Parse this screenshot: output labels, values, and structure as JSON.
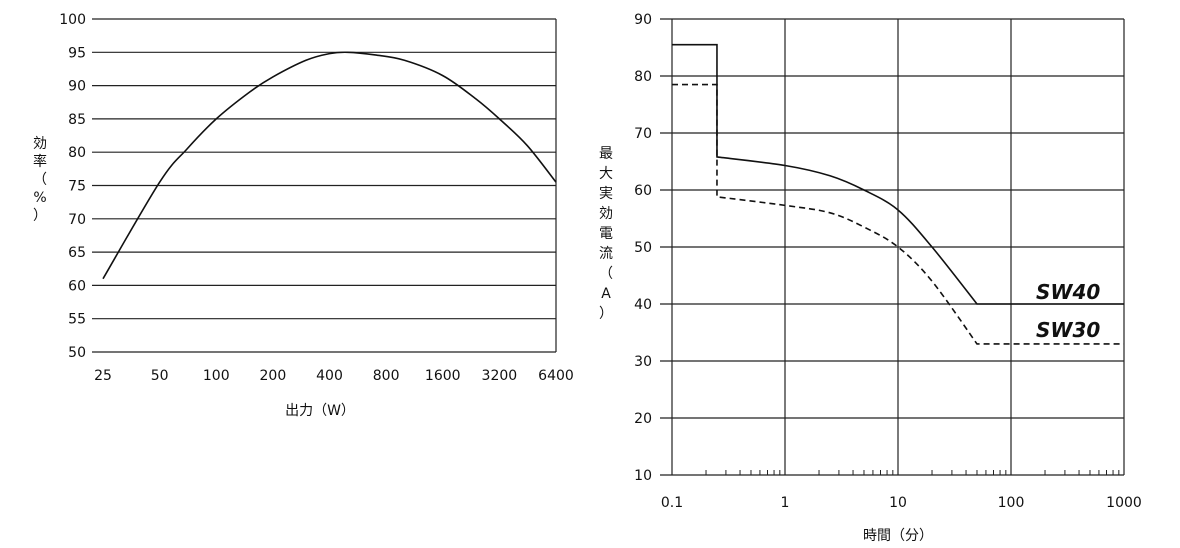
{
  "chart_data": [
    {
      "type": "line",
      "xlabel": "出力（W）",
      "ylabel_chars": [
        "効",
        "率",
        "（",
        "%",
        "）"
      ],
      "x_scale": "log2",
      "x_ticks": [
        "25",
        "50",
        "100",
        "200",
        "400",
        "800",
        "1600",
        "3200",
        "6400"
      ],
      "y_ticks": [
        "50",
        "55",
        "60",
        "65",
        "70",
        "75",
        "80",
        "85",
        "90",
        "95",
        "100"
      ],
      "ylim": [
        50,
        100
      ],
      "xlim": [
        25,
        6400
      ],
      "grid": "horizontal",
      "series": [
        {
          "x": [
            25,
            50,
            70,
            100,
            150,
            200,
            300,
            400,
            500,
            700,
            1000,
            1600,
            2400,
            3200,
            4500,
            6400
          ],
          "y": [
            61,
            75.5,
            80.5,
            85,
            89,
            91.3,
            93.8,
            94.8,
            95,
            94.6,
            93.8,
            91.5,
            88,
            85,
            81,
            75.5
          ]
        }
      ]
    },
    {
      "type": "line",
      "xlabel": "時間（分）",
      "ylabel_chars": [
        "最",
        "大",
        "実",
        "効",
        "電",
        "流",
        "（",
        "A",
        "）"
      ],
      "x_scale": "log10",
      "x_ticks": [
        "0.1",
        "1",
        "10",
        "100",
        "1000"
      ],
      "y_ticks": [
        "10",
        "20",
        "30",
        "40",
        "50",
        "60",
        "70",
        "80",
        "90"
      ],
      "ylim": [
        10,
        90
      ],
      "xlim": [
        0.1,
        1000
      ],
      "grid": "both",
      "series": [
        {
          "name": "SW40",
          "style": "solid",
          "x": [
            0.1,
            0.25,
            0.25,
            1,
            2.5,
            5,
            10,
            20,
            50,
            1000
          ],
          "y": [
            85.5,
            85.5,
            65.8,
            64.3,
            62.5,
            60,
            56.5,
            50,
            40,
            40
          ]
        },
        {
          "name": "SW30",
          "style": "dashed",
          "x": [
            0.1,
            0.25,
            0.25,
            1,
            2.5,
            5,
            10,
            20,
            50,
            1000
          ],
          "y": [
            78.5,
            78.5,
            58.8,
            57.3,
            56,
            53.5,
            50,
            44,
            33,
            33
          ]
        }
      ]
    }
  ]
}
